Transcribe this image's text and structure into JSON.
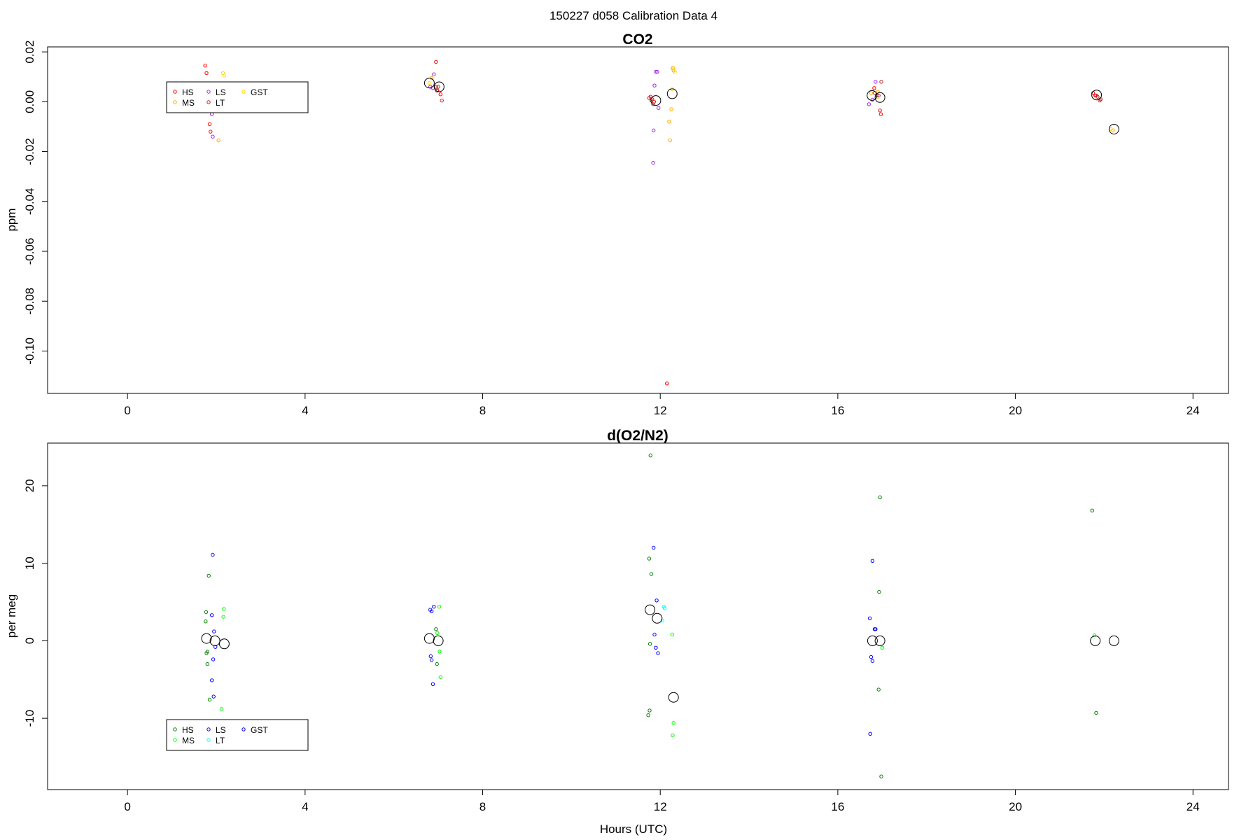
{
  "figure": {
    "title": "150227   d058   Calibration Data 4"
  },
  "chart_data": [
    {
      "type": "scatter",
      "title": "CO2",
      "ylabel": "ppm",
      "xlabel": "",
      "xlim": [
        -1.8,
        24.8
      ],
      "ylim": [
        -0.117,
        0.022
      ],
      "x_ticks": [
        0,
        4,
        8,
        12,
        16,
        20,
        24
      ],
      "y_ticks": [
        0.02,
        0.0,
        -0.02,
        -0.04,
        -0.06,
        -0.08,
        -0.1
      ],
      "y_tick_labels": [
        "0.02",
        "0.00",
        "-0.02",
        "-0.04",
        "-0.06",
        "-0.08",
        "-0.10"
      ],
      "legend": {
        "position": "top-left",
        "entries": [
          {
            "name": "HS",
            "color": "#ff0000"
          },
          {
            "name": "MS",
            "color": "#ffa500"
          },
          {
            "name": "LS",
            "color": "#a020f0"
          },
          {
            "name": "LT",
            "color": "#b22222"
          },
          {
            "name": "GST",
            "color": "#ffd700"
          }
        ]
      },
      "series": [
        {
          "name": "HS",
          "color": "#ff0000",
          "points": [
            [
              1.75,
              0.0145
            ],
            [
              1.78,
              0.0115
            ],
            [
              1.85,
              -0.009
            ],
            [
              1.87,
              -0.012
            ],
            [
              6.95,
              0.016
            ],
            [
              6.98,
              0.0045
            ],
            [
              7.05,
              0.003
            ],
            [
              7.08,
              0.0005
            ],
            [
              11.78,
              0.002
            ],
            [
              11.82,
              0.001
            ],
            [
              11.86,
              0.0
            ],
            [
              12.15,
              -0.113
            ],
            [
              16.82,
              0.0055
            ],
            [
              16.95,
              -0.0035
            ],
            [
              16.97,
              -0.005
            ],
            [
              21.75,
              0.0035
            ],
            [
              21.8,
              0.0025
            ],
            [
              21.9,
              0.0005
            ]
          ]
        },
        {
          "name": "MS",
          "color": "#ffa500",
          "points": [
            [
              2.05,
              -0.0155
            ],
            [
              6.85,
              0.0095
            ],
            [
              12.2,
              -0.008
            ],
            [
              12.22,
              -0.0155
            ],
            [
              12.25,
              -0.003
            ],
            [
              12.28,
              0.0135
            ],
            [
              12.3,
              0.0125
            ],
            [
              16.75,
              0.0035
            ],
            [
              16.9,
              0.004
            ],
            [
              22.2,
              -0.0115
            ]
          ]
        },
        {
          "name": "LS",
          "color": "#a020f0",
          "points": [
            [
              1.9,
              -0.005
            ],
            [
              1.92,
              -0.014
            ],
            [
              6.82,
              0.006
            ],
            [
              6.88,
              0.0055
            ],
            [
              6.9,
              0.011
            ],
            [
              11.85,
              -0.0115
            ],
            [
              11.87,
              0.0065
            ],
            [
              11.9,
              0.012
            ],
            [
              11.93,
              0.012
            ],
            [
              11.96,
              -0.0025
            ],
            [
              11.84,
              -0.0245
            ],
            [
              16.7,
              -0.001
            ],
            [
              16.78,
              0.0008
            ],
            [
              16.85,
              0.008
            ],
            [
              16.88,
              0.0025
            ]
          ]
        },
        {
          "name": "LT",
          "color": "#b22222",
          "points": [
            [
              1.95,
              0.004
            ],
            [
              6.95,
              0.006
            ],
            [
              6.97,
              0.0045
            ],
            [
              7.0,
              0.006
            ],
            [
              11.75,
              0.0015
            ],
            [
              11.8,
              0.0005
            ],
            [
              11.84,
              -0.001
            ],
            [
              16.83,
              0.0035
            ],
            [
              16.92,
              0.0025
            ],
            [
              16.98,
              0.008
            ],
            [
              21.82,
              0.0025
            ],
            [
              21.85,
              0.002
            ],
            [
              21.92,
              0.001
            ]
          ]
        },
        {
          "name": "GST",
          "color": "#ffd700",
          "points": [
            [
              2.15,
              0.0115
            ],
            [
              2.18,
              0.0105
            ],
            [
              6.8,
              0.0075
            ],
            [
              12.27,
              0.005
            ],
            [
              12.3,
              0.0135
            ],
            [
              12.33,
              0.012
            ],
            [
              16.9,
              0.002
            ],
            [
              22.15,
              -0.011
            ]
          ]
        }
      ],
      "means": [
        [
          6.8,
          0.0075
        ],
        [
          7.02,
          0.006
        ],
        [
          11.9,
          0.0005
        ],
        [
          12.27,
          0.0032
        ],
        [
          16.77,
          0.0025
        ],
        [
          16.95,
          0.0017
        ],
        [
          21.83,
          0.0027
        ],
        [
          22.22,
          -0.011
        ]
      ]
    },
    {
      "type": "scatter",
      "title": "d(O2/N2)",
      "ylabel": "per meg",
      "xlabel": "Hours (UTC)",
      "xlim": [
        -1.8,
        24.8
      ],
      "ylim": [
        -19.2,
        25.5
      ],
      "x_ticks": [
        0,
        4,
        8,
        12,
        16,
        20,
        24
      ],
      "y_ticks": [
        20,
        10,
        0,
        -10
      ],
      "y_tick_labels": [
        "20",
        "10",
        "0",
        "-10"
      ],
      "legend": {
        "position": "bottom-left",
        "entries": [
          {
            "name": "HS",
            "color": "#008000"
          },
          {
            "name": "MS",
            "color": "#00ff00"
          },
          {
            "name": "LS",
            "color": "#0000ff"
          },
          {
            "name": "LT",
            "color": "#00ffff"
          },
          {
            "name": "GST",
            "color": "#0000cd"
          }
        ]
      },
      "series": [
        {
          "name": "HS",
          "color": "#008000",
          "points": [
            [
              1.83,
              8.4
            ],
            [
              1.77,
              3.7
            ],
            [
              1.76,
              2.5
            ],
            [
              1.8,
              -1.4
            ],
            [
              1.78,
              -1.6
            ],
            [
              1.8,
              -3.0
            ],
            [
              1.85,
              -7.6
            ],
            [
              6.95,
              1.5
            ],
            [
              6.97,
              -3.0
            ],
            [
              11.78,
              23.9
            ],
            [
              11.75,
              10.6
            ],
            [
              11.8,
              8.6
            ],
            [
              11.77,
              -0.4
            ],
            [
              11.73,
              -9.6
            ],
            [
              11.76,
              -9.0
            ],
            [
              16.95,
              18.5
            ],
            [
              16.93,
              6.3
            ],
            [
              16.92,
              -6.3
            ],
            [
              16.98,
              -17.5
            ],
            [
              21.73,
              16.8
            ],
            [
              21.82,
              -9.3
            ]
          ]
        },
        {
          "name": "MS",
          "color": "#00ff00",
          "points": [
            [
              2.17,
              4.1
            ],
            [
              2.16,
              3.1
            ],
            [
              2.12,
              -8.8
            ],
            [
              7.02,
              4.4
            ],
            [
              6.98,
              1.0
            ],
            [
              7.03,
              -1.4
            ],
            [
              7.05,
              -4.7
            ],
            [
              12.27,
              0.8
            ],
            [
              12.3,
              -10.6
            ],
            [
              12.28,
              -12.2
            ],
            [
              17.0,
              -0.9
            ],
            [
              21.78,
              0.7
            ]
          ]
        },
        {
          "name": "LS",
          "color": "#0000ff",
          "points": [
            [
              1.92,
              11.1
            ],
            [
              1.9,
              3.3
            ],
            [
              1.95,
              1.2
            ],
            [
              1.98,
              -0.8
            ],
            [
              1.93,
              -2.4
            ],
            [
              1.9,
              -5.1
            ],
            [
              1.94,
              -7.2
            ],
            [
              6.82,
              4.0
            ],
            [
              6.85,
              3.8
            ],
            [
              6.9,
              4.4
            ],
            [
              6.83,
              -2.0
            ],
            [
              6.85,
              -2.5
            ],
            [
              6.88,
              -5.6
            ],
            [
              11.85,
              12.0
            ],
            [
              11.92,
              5.2
            ],
            [
              11.87,
              0.8
            ],
            [
              11.9,
              -0.9
            ],
            [
              11.95,
              -1.6
            ],
            [
              16.78,
              10.3
            ],
            [
              16.72,
              2.9
            ],
            [
              16.75,
              -2.1
            ],
            [
              16.78,
              -2.6
            ],
            [
              16.73,
              -12.0
            ],
            [
              16.83,
              1.5
            ]
          ]
        },
        {
          "name": "LT",
          "color": "#00ffff",
          "points": [
            [
              12.08,
              4.4
            ],
            [
              12.1,
              4.2
            ],
            [
              12.05,
              2.6
            ]
          ]
        },
        {
          "name": "GST",
          "color": "#0000cd",
          "points": [
            [
              16.85,
              1.5
            ]
          ]
        }
      ],
      "means": [
        [
          1.78,
          0.3
        ],
        [
          1.97,
          0.0
        ],
        [
          2.18,
          -0.4
        ],
        [
          6.8,
          0.3
        ],
        [
          7.0,
          0.0
        ],
        [
          11.77,
          4.0
        ],
        [
          11.93,
          2.9
        ],
        [
          12.3,
          -7.3
        ],
        [
          16.78,
          0.0
        ],
        [
          16.95,
          0.0
        ],
        [
          21.8,
          0.0
        ],
        [
          22.22,
          0.0
        ]
      ]
    }
  ]
}
